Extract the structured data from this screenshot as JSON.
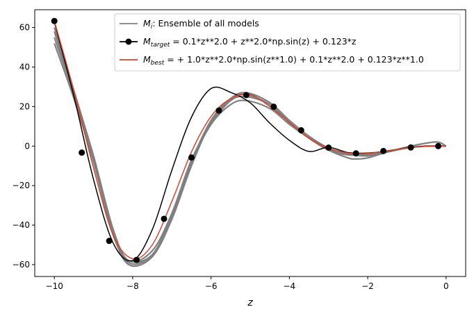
{
  "chart_data": {
    "type": "line",
    "title": "",
    "xlabel": "z",
    "ylabel": "",
    "xlim": [
      -10.5,
      0.5
    ],
    "ylim": [
      -66,
      69
    ],
    "xticks": [
      -10,
      -8,
      -6,
      -4,
      -2,
      0
    ],
    "xtick_labels": [
      "−10",
      "−8",
      "−6",
      "−4",
      "−2",
      "0"
    ],
    "yticks": [
      -60,
      -40,
      -20,
      0,
      20,
      40,
      60
    ],
    "ytick_labels": [
      "−60",
      "−40",
      "−20",
      "0",
      "20",
      "40",
      "60"
    ],
    "grid": false,
    "legend_position": "top-right",
    "legend": [
      {
        "symbol": "M",
        "sub": "i",
        "text": ":  Ensemble of all models",
        "color": "#808080",
        "marker": false
      },
      {
        "symbol": "M",
        "sub": "target",
        "text": " = 0.1*z**2.0 + z**2.0*np.sin(z) + 0.123*z",
        "color": "#000000",
        "marker": true
      },
      {
        "symbol": "M",
        "sub": "best",
        "text": " =  + 1.0*z**2.0*np.sin(z**1.0) + 0.1*z**2.0 + 0.123*z**1.0",
        "color": "#d9412b",
        "marker": false
      }
    ],
    "series": [
      {
        "role": "ensemble",
        "color": "#808080",
        "members": [
          {
            "x": [
              -10,
              -9.5,
              -9,
              -8.5,
              -8.1,
              -7.5,
              -7,
              -6.5,
              -6,
              -5.5,
              -5.1,
              -4.5,
              -4,
              -3.5,
              -3,
              -2.5,
              -2.3,
              -2,
              -1.5,
              -1,
              -0.5,
              -0.2,
              0
            ],
            "y": [
              60,
              28,
              -5,
              -42,
              -58,
              -53,
              -34,
              -7,
              11,
              21,
              23,
              19,
              11,
              4,
              -2,
              -6,
              -6.5,
              -6,
              -3,
              -0.5,
              1.5,
              2,
              0
            ]
          },
          {
            "x": [
              -10,
              -9.5,
              -9,
              -8.5,
              -8.1,
              -7.5,
              -7,
              -6.5,
              -6,
              -5.5,
              -5.1,
              -4.5,
              -4,
              -3.5,
              -3,
              -2.5,
              -2,
              -1.5,
              -1,
              -0.5,
              0
            ],
            "y": [
              55,
              26,
              -6,
              -44,
              -60,
              -56,
              -37,
              -10,
              12,
              24,
              27,
              22,
              13,
              5,
              -1,
              -4,
              -5,
              -3,
              -1,
              0,
              0
            ]
          },
          {
            "x": [
              -10,
              -9.5,
              -9,
              -8.5,
              -8.1,
              -7.5,
              -7,
              -6.5,
              -6,
              -5.5,
              -5.1,
              -4.5,
              -4,
              -3.5,
              -3,
              -2.5,
              -2,
              -1.5,
              -1,
              -0.5,
              0
            ],
            "y": [
              52,
              24,
              -8,
              -45,
              -58,
              -55,
              -36,
              -8,
              13,
              24,
              26,
              21,
              12,
              4,
              -2,
              -4.5,
              -4,
              -2.5,
              -1,
              0,
              0
            ]
          },
          {
            "x": [
              -10,
              -9.5,
              -9,
              -8.5,
              -8.1,
              -7.5,
              -7,
              -6.5,
              -6,
              -5.5,
              -5.1,
              -4.5,
              -4,
              -3.5,
              -3,
              -2.5,
              -2,
              -1.5,
              -1,
              -0.5,
              0
            ],
            "y": [
              58,
              27,
              -5,
              -43,
              -59,
              -55,
              -35,
              -8,
              11,
              23,
              25,
              21,
              12,
              4,
              -1.5,
              -4,
              -4.5,
              -3,
              -1,
              0,
              0
            ]
          }
        ]
      },
      {
        "role": "target",
        "name": "M_target",
        "color": "#000000",
        "x": [
          -10,
          -9.5,
          -9,
          -8.5,
          -8,
          -7.5,
          -7,
          -6.5,
          -6,
          -5.5,
          -5,
          -4.5,
          -4,
          -3.5,
          -3,
          -2.5,
          -2,
          -1.5,
          -1,
          -0.5,
          0
        ],
        "y": [
          62.9,
          25.2,
          -16.9,
          -49.0,
          -57.9,
          -42.3,
          -12.2,
          14.6,
          29.1,
          27.2,
          21.9,
          11.6,
          2.9,
          -2.7,
          -0.6,
          -3.3,
          -3.5,
          -2.5,
          -0.8,
          -0.1,
          0
        ]
      },
      {
        "role": "target_points",
        "color": "#000000",
        "x": [
          -10,
          -9.3,
          -8.6,
          -7.9,
          -7.2,
          -6.5,
          -5.8,
          -5.1,
          -4.4,
          -3.7,
          -3.0,
          -2.3,
          -1.6,
          -0.9,
          -0.2
        ],
        "y": [
          63.3,
          -3.3,
          -48.0,
          -57.6,
          -36.8,
          -5.8,
          18.0,
          25.8,
          19.9,
          8.0,
          -0.8,
          -3.7,
          -2.5,
          -0.7,
          0.0
        ]
      },
      {
        "role": "best",
        "name": "M_best",
        "color": "#d9412b",
        "x": [
          -10,
          -9.5,
          -9,
          -8.5,
          -8,
          -7.5,
          -7,
          -6.5,
          -6,
          -5.5,
          -5,
          -4.5,
          -4,
          -3.5,
          -3,
          -2.5,
          -2,
          -1.5,
          -1,
          -0.5,
          0
        ],
        "y": [
          63.3,
          28,
          -11,
          -45,
          -57,
          -50,
          -28,
          -3,
          15,
          24,
          26,
          20,
          12,
          4,
          -1,
          -3.5,
          -3.7,
          -2.4,
          -0.9,
          -0.1,
          0
        ]
      }
    ]
  }
}
